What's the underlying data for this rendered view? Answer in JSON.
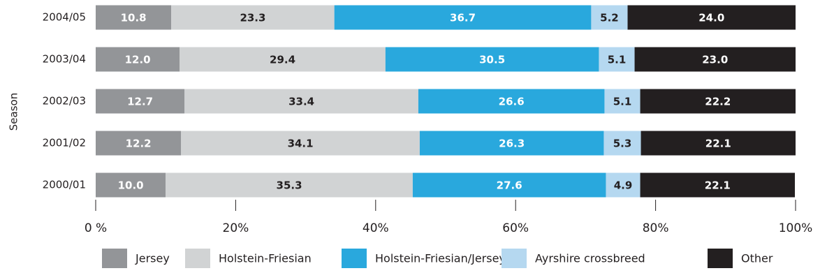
{
  "chart_data": {
    "type": "stacked-bar-horizontal",
    "y_label": "Season",
    "categories": [
      "2004/05",
      "2003/04",
      "2002/03",
      "2001/02",
      "2000/01"
    ],
    "series": [
      {
        "name": "Jersey",
        "color": "#939598",
        "values": [
          10.8,
          12,
          12.7,
          12.2,
          10
        ],
        "value_labels": [
          "10.8",
          "12.0",
          "12.7",
          "12.2",
          "10.0"
        ]
      },
      {
        "name": "Holstein-Friesian",
        "color": "#d1d3d4",
        "values": [
          23.3,
          29.4,
          33.4,
          34.1,
          35.3
        ],
        "value_labels": [
          "23.3",
          "29.4",
          "33.4",
          "34.1",
          "35.3"
        ]
      },
      {
        "name": "Holstein-Friesian/Jersey",
        "color": "#29a8dd",
        "values": [
          36.7,
          30.5,
          26.6,
          26.3,
          27.6
        ],
        "value_labels": [
          "36.7",
          "30.5",
          "26.6",
          "26.3",
          "27.6"
        ]
      },
      {
        "name": "Ayrshire crossbreed",
        "color": "#b5d8f0",
        "values": [
          5.2,
          5.1,
          5.1,
          5.3,
          4.9
        ],
        "value_labels": [
          "5.2",
          "5.1",
          "5.1",
          "5.3",
          "4.9"
        ]
      },
      {
        "name": "Other",
        "color": "#231f20",
        "values": [
          24,
          23,
          22.2,
          22.1,
          22.1
        ],
        "value_labels": [
          "24.0",
          "23.0",
          "22.2",
          "22.1",
          "22.1"
        ]
      }
    ],
    "xlim": [
      0,
      100
    ],
    "xticks": [
      {
        "value": 0,
        "label": "0 %"
      },
      {
        "value": 20,
        "label": "20%"
      },
      {
        "value": 40,
        "label": "40%"
      },
      {
        "value": 60,
        "label": "60%"
      },
      {
        "value": 80,
        "label": "80%"
      },
      {
        "value": 100,
        "label": "100%"
      }
    ],
    "legend": "bottom"
  }
}
